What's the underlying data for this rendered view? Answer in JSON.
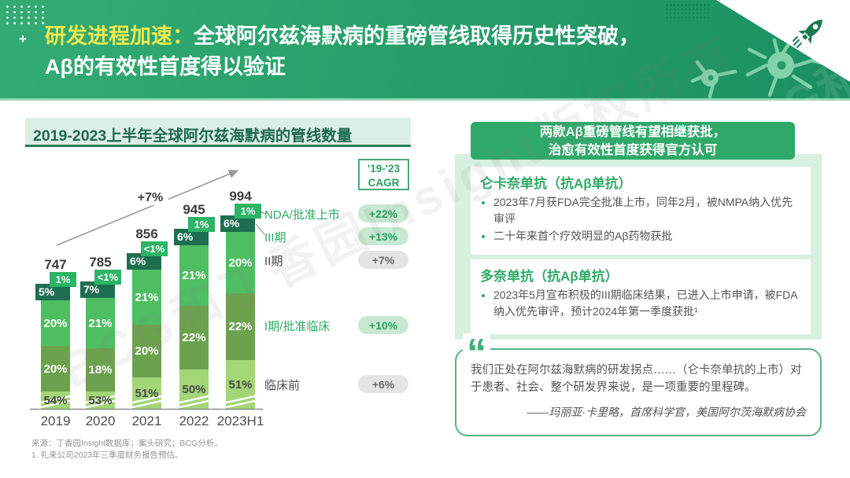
{
  "header": {
    "plus_deco": "+",
    "title_highlight": "研发进程加速：",
    "title_line1_rest": "全球阿尔兹海默病的重磅管线取得历史性突破，",
    "title_line2": "Aβ的有效性首度得以验证"
  },
  "watermark": "BCG和丁香园Insight版权所有",
  "colors": {
    "header_green": "#2aa06c",
    "accent_yellow": "#ebe94f",
    "banner_green": "#2fa969",
    "mint_panel": "#d8efe1",
    "legend_green": "#2faa66"
  },
  "chart_data": {
    "type": "bar",
    "stacked": true,
    "axis_truncated": true,
    "title": "2019-2023上半年全球阿尔兹海默病的管线数量",
    "categories": [
      "2019",
      "2020",
      "2021",
      "2022",
      "2023H1"
    ],
    "totals": [
      747,
      785,
      856,
      945,
      994
    ],
    "series": [
      {
        "name": "临床前",
        "color": "#a2d677",
        "values_pct": [
          "54%",
          "53%",
          "51%",
          "50%",
          "51%"
        ]
      },
      {
        "name": "I期/批准临床",
        "color": "#6ca24e",
        "values_pct": [
          "20%",
          "18%",
          "20%",
          "22%",
          "22%"
        ]
      },
      {
        "name": "II期",
        "color": "#4fbe62",
        "values_pct": [
          "20%",
          "21%",
          "21%",
          "21%",
          "20%"
        ]
      },
      {
        "name": "III期",
        "color": "#1e6f50",
        "values_pct": [
          "5%",
          "7%",
          "6%",
          "6%",
          "6%"
        ]
      },
      {
        "name": "NDA/批准上市",
        "color": "#2db466",
        "values_pct": [
          "1%",
          "<1%",
          "<1%",
          "1%",
          "1%"
        ]
      }
    ],
    "overall_growth": "+7%",
    "cagr_header": [
      "'19-'23",
      "CAGR"
    ],
    "cagr": [
      {
        "label": "NDA/批准上市",
        "value": "+22%",
        "highlight": true
      },
      {
        "label": "III期",
        "value": "+13%",
        "highlight": true
      },
      {
        "label": "II期",
        "value": "+7%",
        "highlight": false
      },
      {
        "label": "I期/批准临床",
        "value": "+10%",
        "highlight": true
      },
      {
        "label": "临床前",
        "value": "+6%",
        "highlight": false
      }
    ]
  },
  "right_panel": {
    "banner_line1": "两款Aβ重磅管线有望相继获批，",
    "banner_line2": "治愈有效性首度获得官方认可",
    "cards": [
      {
        "title": "仑卡奈单抗（抗Aβ单抗）",
        "bullets": [
          "2023年7月获FDA完全批准上市，同年2月，被NMPA纳入优先审评",
          "二十年来首个疗效明显的Aβ药物获批"
        ]
      },
      {
        "title": "多奈单抗（抗Aβ单抗）",
        "bullets": [
          "2023年5月宣布积极的III期临床结果，已进入上市申请，被FDA纳入优先审评，预计2024年第一季度获批¹"
        ]
      }
    ],
    "quote": {
      "mark": "“",
      "text": "我们正处在阿尔兹海默病的研发拐点……（仑卡奈单抗的上市）对于患者、社会、整个研发界来说，是一项重要的里程碑。",
      "attribution": "——玛丽亚·卡里略，首席科学官，美国阿尔茨海默病协会"
    }
  },
  "footer": {
    "source": "来源：丁香园Insight数据库；案头研究；BCG分析。",
    "note": "1. 礼来公司2023年三季度财务报告预估。"
  }
}
